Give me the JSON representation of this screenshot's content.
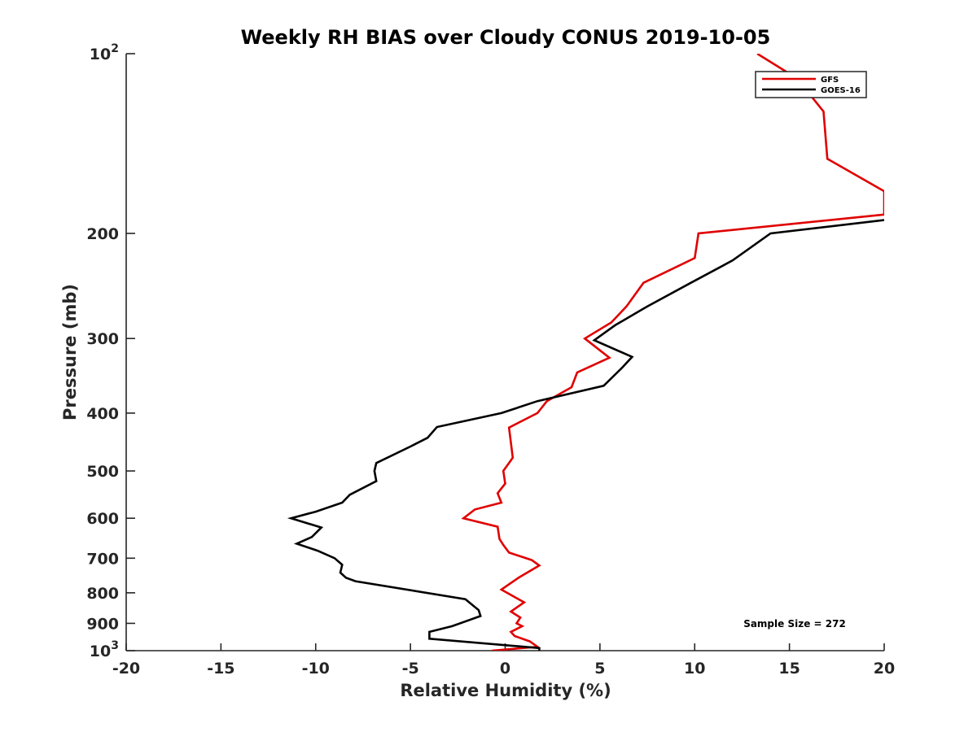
{
  "chart_data": {
    "type": "line",
    "title": "Weekly RH BIAS over Cloudy CONUS 2019-10-05",
    "xlabel": "Relative Humidity (%)",
    "ylabel": "Pressure (mb)",
    "xlim": [
      -20,
      20
    ],
    "ylim": [
      100,
      1000
    ],
    "y_scale": "log",
    "y_reversed": true,
    "x_ticks": [
      "-20",
      "-15",
      "-10",
      "-5",
      "0",
      "5",
      "10",
      "15",
      "20"
    ],
    "y_ticks": [
      {
        "value": 100,
        "base": "10",
        "exp": "2"
      },
      {
        "value": 200,
        "label": "200"
      },
      {
        "value": 300,
        "label": "300"
      },
      {
        "value": 400,
        "label": "400"
      },
      {
        "value": 500,
        "label": "500"
      },
      {
        "value": 600,
        "label": "600"
      },
      {
        "value": 700,
        "label": "700"
      },
      {
        "value": 800,
        "label": "800"
      },
      {
        "value": 900,
        "label": "900"
      },
      {
        "value": 1000,
        "base": "10",
        "exp": "3"
      }
    ],
    "grid": false,
    "legend_position": "top-right",
    "annotation": "Sample Size = 272",
    "series": [
      {
        "name": "GFS",
        "color": "#e00000",
        "points": [
          [
            13.3,
            100
          ],
          [
            15.4,
            110
          ],
          [
            16.8,
            125
          ],
          [
            17.0,
            150
          ],
          [
            20.0,
            170
          ],
          [
            20.0,
            186
          ],
          [
            10.2,
            200
          ],
          [
            10.0,
            220
          ],
          [
            7.3,
            242
          ],
          [
            6.4,
            265
          ],
          [
            5.6,
            282
          ],
          [
            4.2,
            300
          ],
          [
            5.5,
            323
          ],
          [
            3.8,
            342
          ],
          [
            3.5,
            362
          ],
          [
            2.2,
            382
          ],
          [
            1.7,
            400
          ],
          [
            0.2,
            423
          ],
          [
            0.4,
            475
          ],
          [
            0.2,
            485
          ],
          [
            -0.1,
            500
          ],
          [
            0.0,
            525
          ],
          [
            -0.4,
            545
          ],
          [
            -0.2,
            565
          ],
          [
            -1.6,
            580
          ],
          [
            -2.2,
            600
          ],
          [
            -0.4,
            620
          ],
          [
            -0.3,
            650
          ],
          [
            -0.1,
            665
          ],
          [
            0.2,
            685
          ],
          [
            1.4,
            705
          ],
          [
            1.8,
            720
          ],
          [
            0.7,
            755
          ],
          [
            -0.2,
            790
          ],
          [
            1.0,
            830
          ],
          [
            0.3,
            860
          ],
          [
            0.8,
            880
          ],
          [
            0.6,
            900
          ],
          [
            0.9,
            910
          ],
          [
            0.3,
            930
          ],
          [
            0.5,
            945
          ],
          [
            1.3,
            965
          ],
          [
            1.7,
            985
          ],
          [
            -0.7,
            1000
          ]
        ]
      },
      {
        "name": "GOES-16",
        "color": "#000000",
        "points": [
          [
            20.0,
            190
          ],
          [
            14.0,
            200
          ],
          [
            12.0,
            222
          ],
          [
            9.8,
            242
          ],
          [
            7.5,
            265
          ],
          [
            5.8,
            285
          ],
          [
            4.7,
            302
          ],
          [
            6.7,
            322
          ],
          [
            6.2,
            335
          ],
          [
            5.2,
            360
          ],
          [
            1.7,
            382
          ],
          [
            -0.2,
            400
          ],
          [
            -3.6,
            422
          ],
          [
            -4.1,
            440
          ],
          [
            -5.0,
            455
          ],
          [
            -6.8,
            485
          ],
          [
            -6.9,
            500
          ],
          [
            -6.8,
            520
          ],
          [
            -8.2,
            548
          ],
          [
            -8.6,
            565
          ],
          [
            -10.0,
            585
          ],
          [
            -11.3,
            600
          ],
          [
            -9.7,
            622
          ],
          [
            -10.2,
            645
          ],
          [
            -11.0,
            662
          ],
          [
            -9.9,
            680
          ],
          [
            -9.0,
            700
          ],
          [
            -8.6,
            718
          ],
          [
            -8.7,
            740
          ],
          [
            -8.4,
            755
          ],
          [
            -7.9,
            765
          ],
          [
            -2.1,
            820
          ],
          [
            -1.4,
            855
          ],
          [
            -1.3,
            875
          ],
          [
            -2.8,
            910
          ],
          [
            -4.0,
            930
          ],
          [
            -4.0,
            955
          ],
          [
            1.8,
            990
          ],
          [
            1.8,
            1000
          ]
        ]
      }
    ]
  }
}
